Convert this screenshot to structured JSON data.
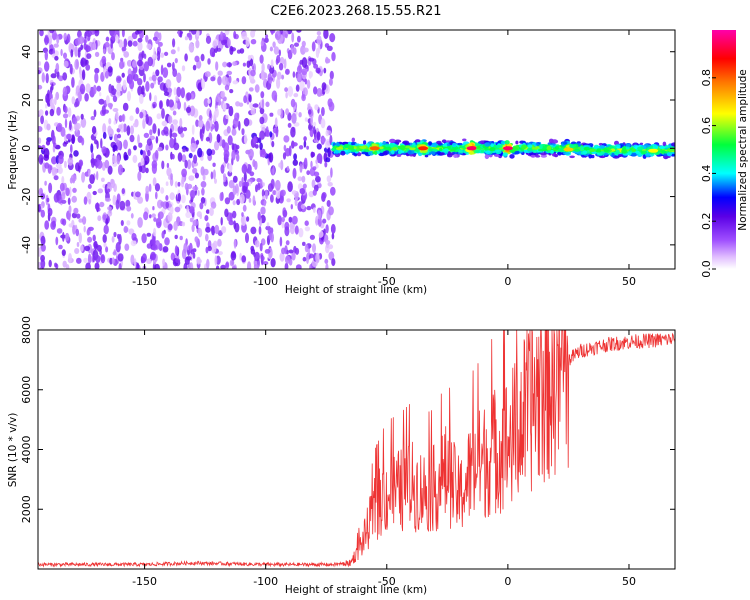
{
  "title": "C2E6.2023.268.15.55.R21",
  "chart_data": [
    {
      "type": "heatmap",
      "xlabel": "Height of straight line (km)",
      "ylabel": "Frequency (Hz)",
      "xlim": [
        -194,
        69
      ],
      "ylim": [
        -50,
        49
      ],
      "xticks": [
        "-150",
        "-100",
        "-50",
        "0",
        "50"
      ],
      "xtick_values": [
        -150,
        -100,
        -50,
        0,
        50
      ],
      "yticks": [
        "40",
        "20",
        "0",
        "-20",
        "-40"
      ],
      "ytick_values": [
        40,
        20,
        0,
        -20,
        -40
      ],
      "colorbar": {
        "label": "Normalized spectral amplitude",
        "ticks": [
          "0.0",
          "0.2",
          "0.4",
          "0.6",
          "0.8"
        ],
        "tick_values": [
          0.0,
          0.2,
          0.4,
          0.6,
          0.8
        ],
        "range": [
          0,
          1
        ],
        "colors": [
          "#ffffff",
          "#cc66ff",
          "#8000ff",
          "#0000ff",
          "#00ffff",
          "#00ff00",
          "#ffff00",
          "#ff8000",
          "#ff0000",
          "#ff00aa"
        ]
      },
      "regions": [
        {
          "x_range": [
            -194,
            -72
          ],
          "freq_range": [
            -50,
            49
          ],
          "amplitude": [
            0.03,
            0.2
          ],
          "description_of_shape": "scattered noise"
        },
        {
          "x_range": [
            -72,
            69
          ],
          "center_freq": 0,
          "half_width_hz": 3,
          "amplitude_peak": 0.95
        }
      ],
      "bright_spots": [
        {
          "x": -55,
          "freq": 0,
          "amplitude": 0.8
        },
        {
          "x": -35,
          "freq": 0,
          "amplitude": 0.85
        },
        {
          "x": -15,
          "freq": 0,
          "amplitude": 0.95
        },
        {
          "x": 0,
          "freq": 0,
          "amplitude": 0.95
        },
        {
          "x": 25,
          "freq": -0.5,
          "amplitude": 0.7
        },
        {
          "x": 60,
          "freq": -1,
          "amplitude": 0.65
        }
      ]
    },
    {
      "type": "line",
      "xlabel": "Height of straight line (km)",
      "ylabel": "SNR (10 * v/v)",
      "xlim": [
        -194,
        69
      ],
      "ylim": [
        0,
        8000
      ],
      "xticks": [
        "-150",
        "-100",
        "-50",
        "0",
        "50"
      ],
      "xtick_values": [
        -150,
        -100,
        -50,
        0,
        50
      ],
      "yticks": [
        "2000",
        "4000",
        "6000",
        "8000"
      ],
      "ytick_values": [
        2000,
        4000,
        6000,
        8000
      ],
      "series": [
        {
          "color": "#ee3333",
          "envelope_x": [
            -194,
            -150,
            -130,
            -100,
            -80,
            -72,
            -65,
            -60,
            -55,
            -50,
            -45,
            -40,
            -35,
            -30,
            -25,
            -20,
            -15,
            -10,
            -5,
            0,
            5,
            10,
            15,
            20,
            25,
            30,
            40,
            50,
            60,
            69
          ],
          "envelope_y": [
            150,
            150,
            200,
            150,
            150,
            150,
            200,
            900,
            2000,
            2500,
            2600,
            2800,
            2600,
            2700,
            3200,
            2400,
            3300,
            3600,
            4000,
            4200,
            4800,
            5600,
            6200,
            6700,
            7000,
            7300,
            7500,
            7600,
            7650,
            7700
          ]
        }
      ]
    }
  ]
}
